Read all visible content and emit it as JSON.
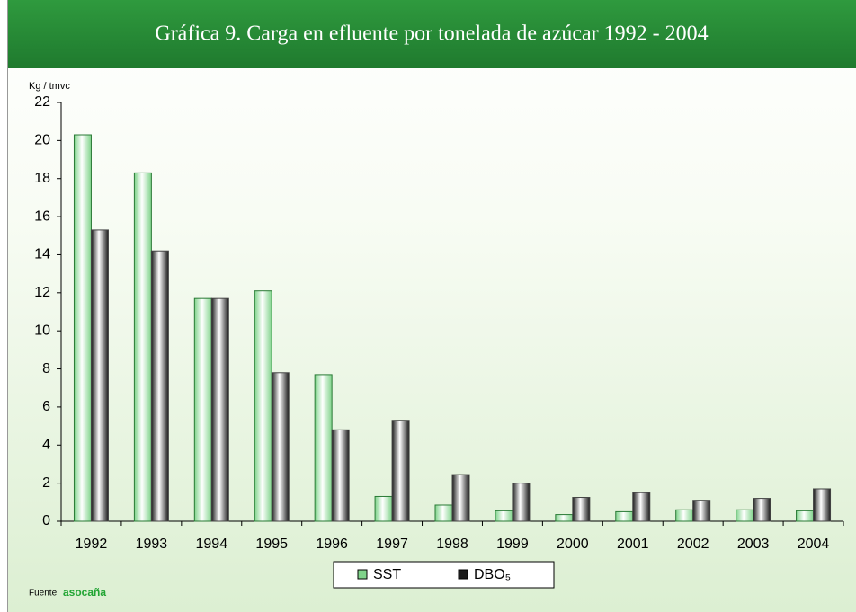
{
  "chart_data": {
    "type": "bar",
    "title": "Gráfica 9. Carga en efluente por tonelada de azúcar 1992 - 2004",
    "y_label": "Kg / tmvc",
    "categories": [
      "1992",
      "1993",
      "1994",
      "1995",
      "1996",
      "1997",
      "1998",
      "1999",
      "2000",
      "2001",
      "2002",
      "2003",
      "2004"
    ],
    "series": [
      {
        "name": "SST",
        "color": "#7fd38a",
        "values": [
          20.3,
          18.3,
          11.7,
          12.1,
          7.7,
          1.3,
          0.85,
          0.55,
          0.35,
          0.5,
          0.6,
          0.6,
          0.55
        ]
      },
      {
        "name": "DBO₅",
        "color": "#1a1a1a",
        "values": [
          15.3,
          14.2,
          11.7,
          7.8,
          4.8,
          5.3,
          2.45,
          2.0,
          1.25,
          1.5,
          1.1,
          1.2,
          1.7
        ]
      }
    ],
    "ylim": [
      0,
      22
    ],
    "yticks": [
      0,
      2,
      4,
      6,
      8,
      10,
      12,
      14,
      16,
      18,
      20,
      22
    ],
    "grid": false,
    "legend": "bottom",
    "source_label": "Fuente:",
    "source": "asocaña"
  }
}
